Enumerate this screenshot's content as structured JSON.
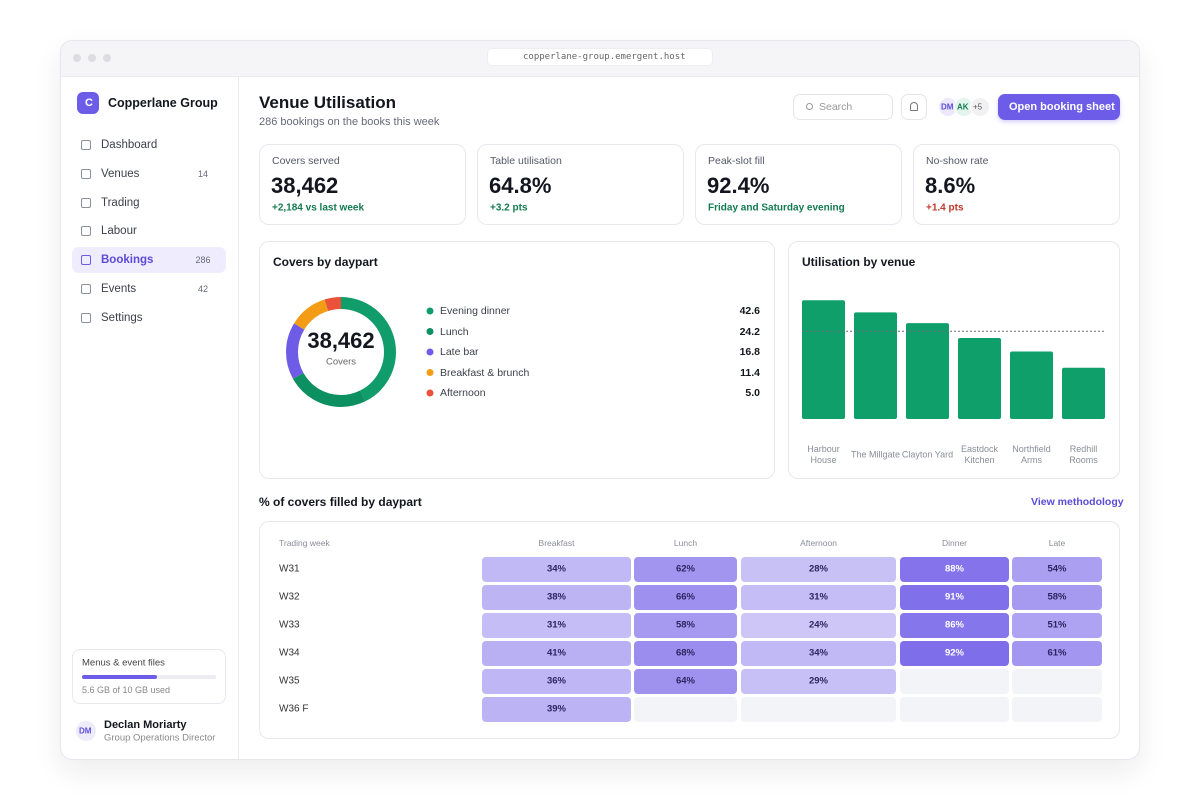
{
  "browser": {
    "url": "copperlane-group.emergent.host"
  },
  "sidebar": {
    "brand_initial": "C",
    "brand": "Copperlane Group",
    "nav": [
      {
        "label": "Dashboard"
      },
      {
        "label": "Venues",
        "badge": 14
      },
      {
        "label": "Trading"
      },
      {
        "label": "Labour"
      },
      {
        "label": "Bookings",
        "badge": 286,
        "active": true
      },
      {
        "label": "Events",
        "badge": 42
      },
      {
        "label": "Settings"
      }
    ],
    "storage": {
      "title": "Menus & event files",
      "used": 5.6,
      "total": 10,
      "label": "5.6 GB of 10 GB used"
    },
    "user": {
      "initials": "DM",
      "name": "Declan Moriarty",
      "role": "Group Operations Director"
    }
  },
  "header": {
    "title": "Venue Utilisation",
    "subtitle": "286 bookings on the books this week",
    "search": "Search",
    "avatars": [
      "DM",
      "AK"
    ],
    "more": "+5",
    "button": "Open booking sheet"
  },
  "kpis": [
    {
      "label": "Covers served",
      "value": "38,462",
      "delta": "+2,184 vs last week",
      "tone": "good"
    },
    {
      "label": "Table utilisation",
      "value": "64.8%",
      "delta": "+3.2 pts",
      "tone": "good"
    },
    {
      "label": "Peak-slot fill",
      "value": "92.4%",
      "delta": "Friday and Saturday evening",
      "tone": "good"
    },
    {
      "label": "No-show rate",
      "value": "8.6%",
      "delta": "+1.4 pts",
      "tone": "bad"
    }
  ],
  "chart_data": [
    {
      "type": "donut",
      "title": "Covers by daypart",
      "center_value": "38,462",
      "center_label": "Covers",
      "categories": [
        "Evening dinner",
        "Lunch",
        "Late bar",
        "Breakfast & brunch",
        "Afternoon"
      ],
      "values": [
        42.6,
        24.2,
        16.8,
        11.4,
        5.0
      ],
      "value_labels": [
        "42.6",
        "24.2",
        "16.8",
        "11.4",
        "5.0"
      ],
      "colors": [
        "#119c6b",
        "#0c8f61",
        "#6e5ce6",
        "#f39c16",
        "#ea5339"
      ]
    },
    {
      "type": "bar",
      "title": "Utilisation by venue",
      "categories": [
        "Harbour House",
        "The Millgate",
        "Clayton Yard",
        "Eastdock Kitchen",
        "Northfield Arms",
        "Redhill Rooms"
      ],
      "values": [
        88,
        79,
        71,
        60,
        50,
        38
      ],
      "color": "#0f9f6a",
      "ylim": [
        0,
        100
      ],
      "reference_line": 65
    }
  ],
  "heatmap": {
    "title": "% of covers filled by daypart",
    "link": "View methodology",
    "row_header": "Trading week",
    "columns": [
      "Breakfast",
      "Lunch",
      "Afternoon",
      "Dinner",
      "Late"
    ],
    "rows": [
      {
        "label": "W31",
        "values": [
          34,
          62,
          28,
          88,
          54
        ],
        "value_labels": [
          "34%",
          "62%",
          "28%",
          "88%",
          "54%"
        ]
      },
      {
        "label": "W32",
        "values": [
          38,
          66,
          31,
          91,
          58
        ],
        "value_labels": [
          "38%",
          "66%",
          "31%",
          "91%",
          "58%"
        ]
      },
      {
        "label": "W33",
        "values": [
          31,
          58,
          24,
          86,
          51
        ],
        "value_labels": [
          "31%",
          "58%",
          "24%",
          "86%",
          "51%"
        ]
      },
      {
        "label": "W34",
        "values": [
          41,
          68,
          34,
          92,
          61
        ],
        "value_labels": [
          "41%",
          "68%",
          "34%",
          "92%",
          "61%"
        ]
      },
      {
        "label": "W35",
        "values": [
          36,
          64,
          29,
          null,
          null
        ],
        "value_labels": [
          "36%",
          "64%",
          "29%",
          null,
          null
        ]
      },
      {
        "label": "W36 F",
        "values": [
          39,
          null,
          null,
          null,
          null
        ],
        "value_labels": [
          "39%",
          null,
          null,
          null,
          null
        ]
      }
    ]
  }
}
